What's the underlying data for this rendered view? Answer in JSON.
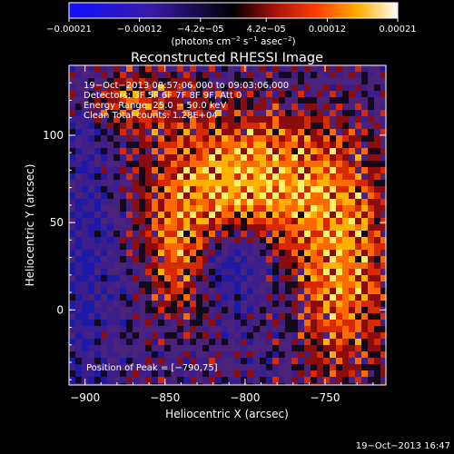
{
  "chart_data": {
    "type": "heatmap",
    "title": "Reconstructed RHESSI Image",
    "xlabel": "Heliocentric X (arcsec)",
    "ylabel": "Heliocentric Y (arcsec)",
    "xlim": [
      -910,
      -712
    ],
    "ylim": [
      -43,
      140
    ],
    "x_ticks": [
      -900,
      -850,
      -800,
      -750
    ],
    "x_tick_labels": [
      "−900",
      "−850",
      "−800",
      "−750"
    ],
    "y_ticks": [
      0,
      50,
      100
    ],
    "y_tick_labels": [
      "0",
      "50",
      "100"
    ],
    "colorbar": {
      "colormap": "hot-rhessi",
      "range": [
        -0.00021,
        0.00021
      ],
      "ticks": [
        -0.00021,
        -0.00012,
        -4.2e-05,
        4.2e-05,
        0.00012,
        0.00021
      ],
      "tick_labels": [
        "−0.00021",
        "−0.00012",
        "−4.2e−05",
        "4.2e−05",
        "0.00012",
        "0.00021"
      ],
      "units_prefix": "(photons cm",
      "units_exp1": "−2",
      "units_mid": " s",
      "units_exp2": "−1",
      "units_mid2": " asec",
      "units_exp3": "−2",
      "units_suffix": ")"
    },
    "annotations": {
      "time_range": "19−Oct−2013 08:57:06.000  to 09:03:06.000",
      "detectors": "Detectors: 3F 5F 6F 7F 8F 9F, Att 0",
      "energy_range": "Energy Range: 25.0 − 50.0 keV",
      "clean_counts": "Clean     Total counts: 1.28E+04",
      "peak": "Position of Peak = [−790,75]"
    },
    "peak_position": [
      -790,
      75
    ],
    "grid": false
  },
  "footer_date": "19−Oct−2013 16:47"
}
